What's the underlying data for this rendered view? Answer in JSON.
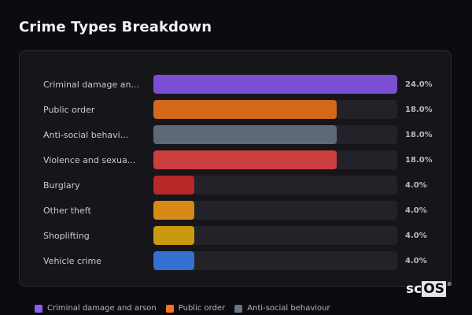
{
  "header": {
    "title": "Crime Types Breakdown"
  },
  "chart_data": {
    "type": "bar",
    "orientation": "horizontal",
    "title": "Crime Types Breakdown",
    "categories": [
      "Criminal damage and arson",
      "Public order",
      "Anti-social behaviour",
      "Violence and sexual offences",
      "Burglary",
      "Other theft",
      "Shoplifting",
      "Vehicle crime"
    ],
    "display_labels": [
      "Criminal damage an...",
      "Public order",
      "Anti-social behavi...",
      "Violence and sexua...",
      "Burglary",
      "Other theft",
      "Shoplifting",
      "Vehicle crime"
    ],
    "values": [
      24.0,
      18.0,
      18.0,
      18.0,
      4.0,
      4.0,
      4.0,
      4.0
    ],
    "value_labels": [
      "24.0%",
      "18.0%",
      "18.0%",
      "18.0%",
      "4.0%",
      "4.0%",
      "4.0%",
      "4.0%"
    ],
    "colors": [
      "#7b4fd1",
      "#d4671c",
      "#5e6878",
      "#cc3d40",
      "#b72828",
      "#d68a16",
      "#c99a10",
      "#3470d0"
    ],
    "xlabel": "",
    "ylabel": "",
    "xlim": [
      0,
      24
    ],
    "grid": false,
    "legend_position": "bottom"
  },
  "legend": [
    {
      "label": "Criminal damage and arson",
      "color": "#8b5cf6"
    },
    {
      "label": "Public order",
      "color": "#f97316"
    },
    {
      "label": "Anti-social behaviour",
      "color": "#64748b"
    }
  ],
  "brand": {
    "prefix": "sc",
    "highlight": "OS",
    "mark": "®"
  }
}
